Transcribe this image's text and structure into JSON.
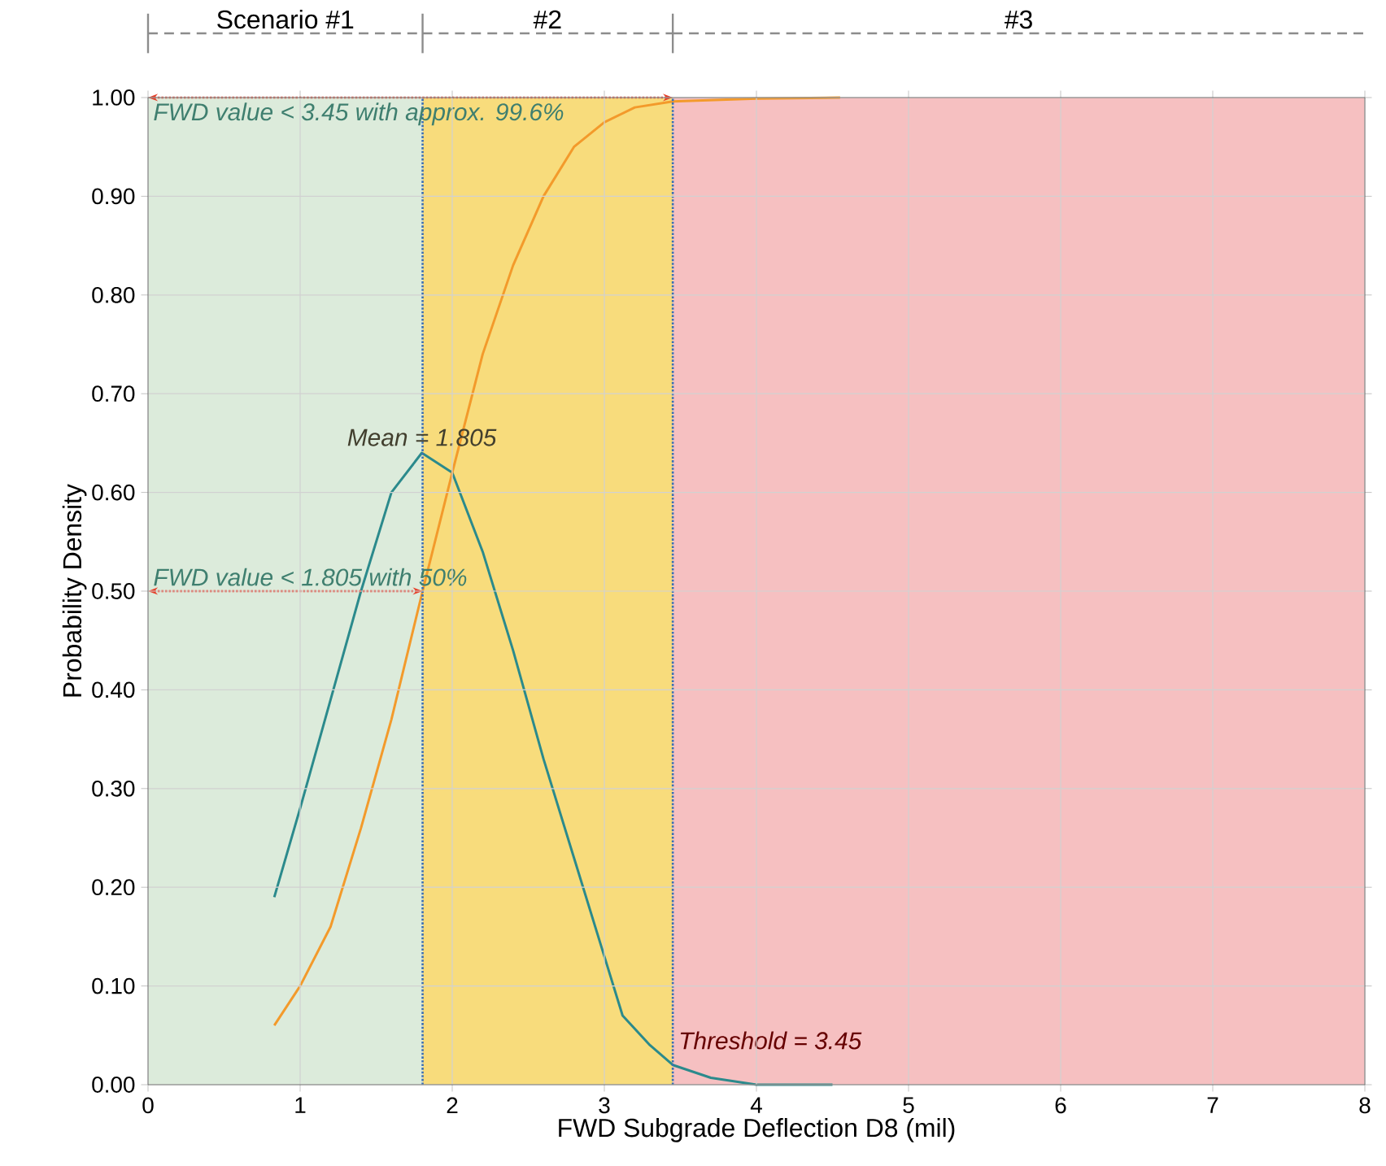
{
  "chart_data": {
    "type": "line",
    "xlabel": "FWD Subgrade Deflection D8 (mil)",
    "ylabel": "Probability Density",
    "xlim": [
      0,
      8
    ],
    "xticks": [
      0,
      1,
      2,
      3,
      4,
      5,
      6,
      7,
      8
    ],
    "ylim": [
      0,
      1
    ],
    "yticks": [
      {
        "value": 0,
        "label": "0.00"
      },
      {
        "value": 0.1,
        "label": "0.10"
      },
      {
        "value": 0.2,
        "label": "0.20"
      },
      {
        "value": 0.3,
        "label": "0.30"
      },
      {
        "value": 0.4,
        "label": "0.40"
      },
      {
        "value": 0.5,
        "label": "0.50"
      },
      {
        "value": 0.6,
        "label": "0.60"
      },
      {
        "value": 0.7,
        "label": "0.70"
      },
      {
        "value": 0.8,
        "label": "0.80"
      },
      {
        "value": 0.9,
        "label": "0.90"
      },
      {
        "value": 1,
        "label": "1.00"
      }
    ],
    "grid": true,
    "series": [
      {
        "color": "#2b8a8c",
        "x": [
          0.83,
          1.0,
          1.2,
          1.4,
          1.6,
          1.8,
          2.0,
          2.2,
          2.4,
          2.6,
          2.8,
          3.0,
          3.12,
          3.3,
          3.45,
          3.7,
          4.0,
          4.5
        ],
        "values": [
          0.19,
          0.28,
          0.39,
          0.5,
          0.6,
          0.64,
          0.62,
          0.54,
          0.44,
          0.33,
          0.23,
          0.13,
          0.07,
          0.04,
          0.02,
          0.007,
          0.0,
          0.0
        ]
      },
      {
        "color": "#f39a2b",
        "x": [
          0.83,
          1.0,
          1.2,
          1.4,
          1.6,
          1.805,
          2.0,
          2.2,
          2.4,
          2.6,
          2.8,
          3.0,
          3.2,
          3.45,
          4.0,
          4.55
        ],
        "values": [
          0.06,
          0.1,
          0.16,
          0.26,
          0.37,
          0.5,
          0.62,
          0.74,
          0.83,
          0.9,
          0.95,
          0.975,
          0.99,
          0.996,
          0.999,
          1.0
        ]
      }
    ],
    "bands": [
      {
        "axis": "x",
        "from": 0,
        "to": 1.805,
        "label": "Scenario #1",
        "color": "#dcebdb"
      },
      {
        "axis": "x",
        "from": 1.805,
        "to": 3.45,
        "label": "#2",
        "color": "#f8dc7c"
      },
      {
        "axis": "x",
        "from": 3.45,
        "to": 8,
        "label": "#3",
        "color": "#f6c0c1"
      }
    ],
    "ref_lines": [
      {
        "axis": "x",
        "value": 1.805,
        "color": "#3a6fb5",
        "line_style": "dotted"
      },
      {
        "axis": "x",
        "value": 3.45,
        "label": "Threshold = 3.45",
        "color": "#3a6fb5",
        "line_style": "dotted"
      }
    ],
    "annotations": [
      "Mean = 1.805",
      {
        "text": "FWD value < 3.45 with approx. 99.6%",
        "x": 3.45,
        "y": 1.0
      },
      {
        "text": "FWD value < 1.805 with 50%",
        "x": 1.805,
        "y": 0.5
      }
    ]
  }
}
